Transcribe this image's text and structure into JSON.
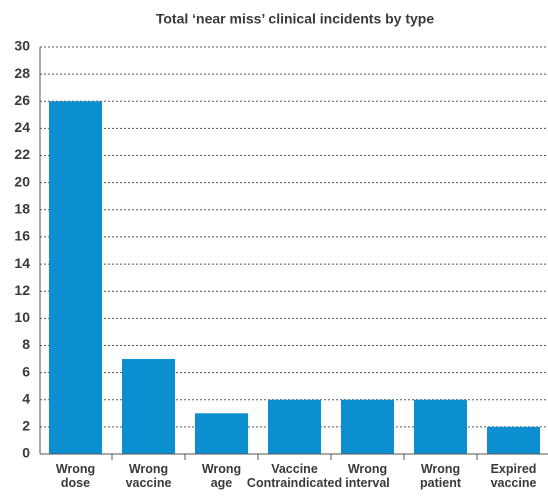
{
  "chart_data": {
    "type": "bar",
    "title": "Total ‘near miss’ clinical incidents by type",
    "categories": [
      "Wrong dose",
      "Wrong vaccine",
      "Wrong age",
      "Vaccine Contraindicated",
      "Wrong interval",
      "Wrong patient",
      "Expired vaccine"
    ],
    "values": [
      26,
      7,
      3,
      4,
      4,
      4,
      2
    ],
    "color": "#0b8fd1",
    "ylim": [
      0,
      30
    ],
    "yticks": [
      0,
      2,
      4,
      6,
      8,
      10,
      12,
      14,
      16,
      18,
      20,
      22,
      24,
      26,
      28,
      30
    ],
    "grid": true
  }
}
